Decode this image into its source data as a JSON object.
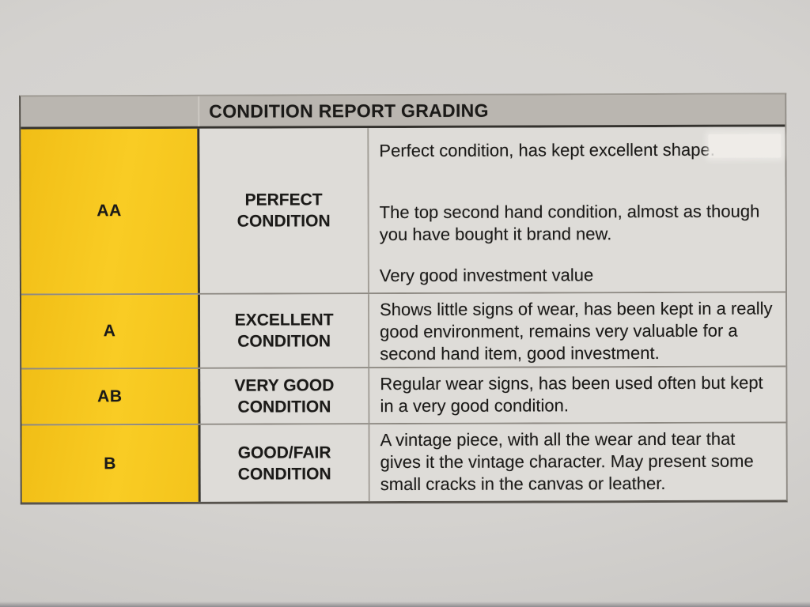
{
  "colors": {
    "grade_bg": "#f9cc24",
    "header_bg": "#bab6b0",
    "cell_bg": "#dedcd8",
    "paper_bg": "#d4d2cf",
    "text": "#1b1a18"
  },
  "table": {
    "title": "CONDITION REPORT GRADING",
    "rows": [
      {
        "grade": "AA",
        "condition": "PERFECT CONDITION",
        "paragraphs": [
          [
            "Perfect condition, has kept excellent shape."
          ],
          [
            "The top second hand condition, almost as though",
            "you have bought it brand new."
          ],
          [
            "Very good investment value"
          ]
        ]
      },
      {
        "grade": "A",
        "condition": "EXCELLENT CONDITION",
        "paragraphs": [
          [
            "Shows little signs of wear, has been kept in a really",
            "good environment, remains very valuable for a",
            "second hand item, good investment."
          ]
        ]
      },
      {
        "grade": "AB",
        "condition": "VERY GOOD CONDITION",
        "paragraphs": [
          [
            "Regular wear signs, has been used often but kept",
            "in a very good condition."
          ]
        ]
      },
      {
        "grade": "B",
        "condition": "GOOD/FAIR CONDITION",
        "paragraphs": [
          [
            "A vintage piece, with all the wear and tear that",
            "gives it the vintage character. May present some",
            "small cracks in the canvas or leather."
          ]
        ]
      }
    ]
  }
}
